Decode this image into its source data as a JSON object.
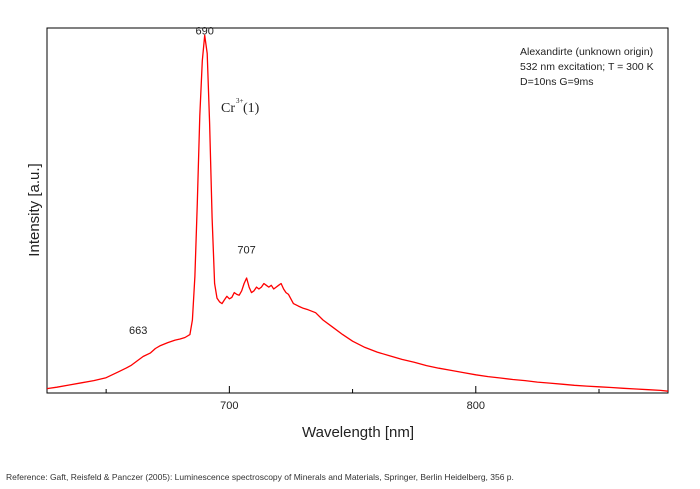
{
  "chart_data": {
    "type": "line",
    "title": "",
    "xlabel": "Wavelength [nm]",
    "ylabel": "Intensity [a.u.]",
    "xlim": [
      626,
      878
    ],
    "ylim": [
      0,
      1
    ],
    "x_ticks": [
      700,
      800
    ],
    "grid": false,
    "info_lines": [
      "Alexandirte (unknown origin)",
      "532 nm excitation; T = 300 K",
      "D=10ns G=9ms"
    ],
    "ion_label": {
      "base": "Cr",
      "sup": "3+",
      "suffix": "(1)"
    },
    "peak_labels": [
      {
        "text": "690",
        "x": 690,
        "y": 0.96
      },
      {
        "text": "707",
        "x": 707,
        "y": 0.36
      },
      {
        "text": "663",
        "x": 663,
        "y": 0.14
      }
    ],
    "series": [
      {
        "color": "#ff0000",
        "x": [
          626,
          630,
          635,
          640,
          645,
          650,
          655,
          658,
          660,
          663,
          665,
          668,
          670,
          672,
          675,
          678,
          680,
          682,
          684,
          685,
          686,
          687,
          688,
          689,
          690,
          691,
          692,
          693,
          694,
          695,
          696,
          697,
          698,
          699,
          700,
          701,
          702,
          703,
          704,
          705,
          706,
          707,
          708,
          709,
          710,
          711,
          712,
          713,
          714,
          715,
          716,
          717,
          718,
          719,
          720,
          721,
          722,
          723,
          724,
          726,
          728,
          730,
          732,
          735,
          738,
          742,
          746,
          750,
          755,
          760,
          765,
          770,
          775,
          780,
          785,
          790,
          795,
          800,
          805,
          810,
          815,
          820,
          825,
          830,
          835,
          840,
          845,
          850,
          855,
          860,
          865,
          870,
          875,
          878
        ],
        "y": [
          0.012,
          0.016,
          0.022,
          0.028,
          0.034,
          0.042,
          0.058,
          0.068,
          0.075,
          0.09,
          0.1,
          0.11,
          0.122,
          0.13,
          0.138,
          0.145,
          0.148,
          0.152,
          0.16,
          0.2,
          0.32,
          0.52,
          0.76,
          0.91,
          0.98,
          0.93,
          0.74,
          0.48,
          0.3,
          0.26,
          0.25,
          0.245,
          0.255,
          0.265,
          0.258,
          0.262,
          0.275,
          0.27,
          0.268,
          0.28,
          0.3,
          0.315,
          0.29,
          0.275,
          0.28,
          0.29,
          0.285,
          0.29,
          0.3,
          0.295,
          0.29,
          0.295,
          0.285,
          0.29,
          0.295,
          0.3,
          0.285,
          0.275,
          0.27,
          0.245,
          0.238,
          0.232,
          0.228,
          0.22,
          0.2,
          0.18,
          0.16,
          0.142,
          0.125,
          0.112,
          0.102,
          0.092,
          0.084,
          0.075,
          0.068,
          0.062,
          0.056,
          0.05,
          0.045,
          0.041,
          0.037,
          0.034,
          0.03,
          0.027,
          0.024,
          0.021,
          0.019,
          0.017,
          0.015,
          0.013,
          0.011,
          0.009,
          0.007,
          0.005
        ]
      }
    ]
  },
  "reference": "Reference: Gaft, Reisfeld & Panczer (2005): Luminescence spectroscopy of Minerals and Materials, Springer, Berlin Heidelberg, 356 p."
}
